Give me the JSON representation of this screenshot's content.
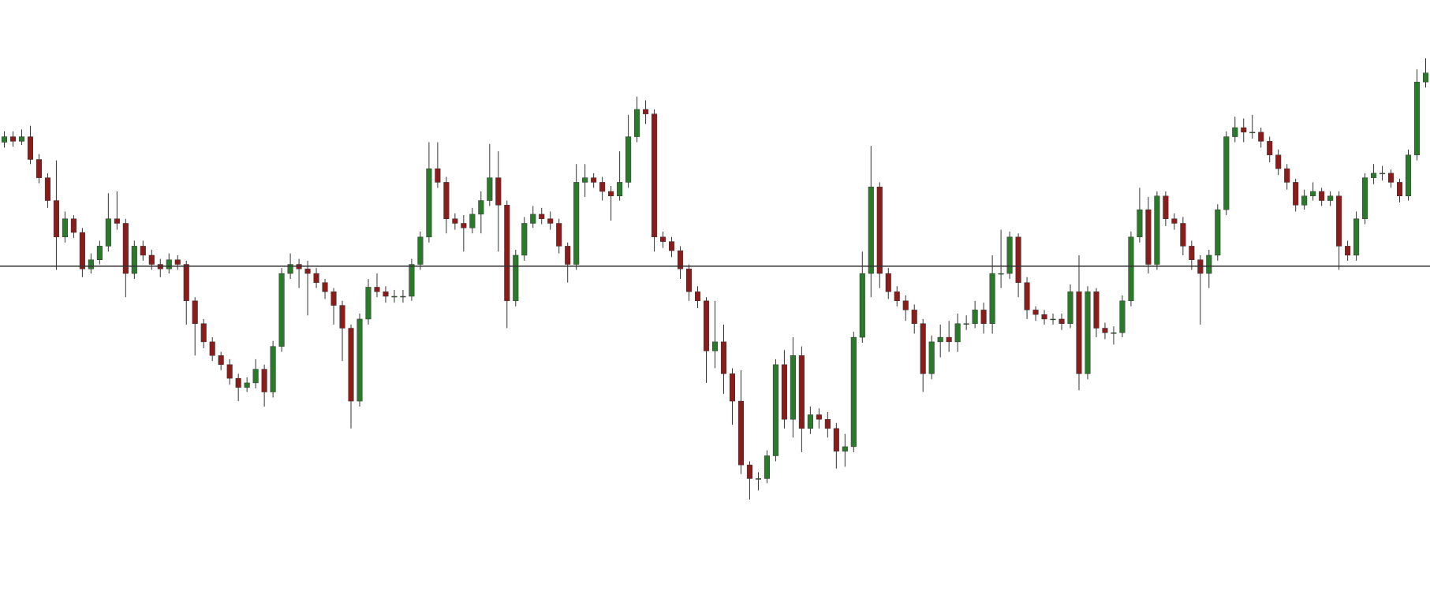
{
  "chart_data": {
    "type": "candlestick",
    "open": [
      500,
      506,
      501,
      506,
      481,
      461,
      436,
      396,
      416,
      401,
      361,
      371,
      386,
      416,
      411,
      356,
      386,
      376,
      366,
      361,
      371,
      366,
      326,
      301,
      281,
      266,
      256,
      241,
      231,
      236,
      251,
      226,
      276,
      356,
      366,
      361,
      356,
      346,
      336,
      321,
      296,
      216,
      306,
      341,
      336,
      331,
      331,
      331,
      366,
      396,
      471,
      456,
      416,
      411,
      406,
      421,
      436,
      461,
      431,
      326,
      376,
      411,
      421,
      416,
      411,
      386,
      366,
      456,
      461,
      456,
      446,
      441,
      456,
      506,
      536,
      531,
      396,
      391,
      381,
      361,
      336,
      326,
      271,
      281,
      246,
      216,
      146,
      131,
      131,
      156,
      256,
      196,
      266,
      186,
      201,
      196,
      186,
      161,
      166,
      286,
      356,
      451,
      356,
      336,
      326,
      316,
      301,
      246,
      281,
      286,
      281,
      301,
      301,
      316,
      301,
      356,
      356,
      396,
      346,
      316,
      311,
      306,
      306,
      301,
      336,
      246,
      336,
      296,
      291,
      291,
      326,
      396,
      426,
      366,
      441,
      416,
      411,
      386,
      371,
      356,
      376,
      426,
      506,
      516,
      511,
      511,
      501,
      486,
      471,
      456,
      431,
      441,
      446,
      436,
      441,
      386,
      376,
      416,
      461,
      466,
      466,
      456,
      441,
      486,
      566
    ],
    "high": [
      512,
      512,
      514,
      518,
      487,
      466,
      480,
      424,
      420,
      406,
      378,
      392,
      444,
      446,
      416,
      392,
      392,
      382,
      372,
      378,
      376,
      370,
      330,
      306,
      286,
      270,
      262,
      246,
      242,
      262,
      256,
      282,
      362,
      378,
      372,
      370,
      362,
      350,
      340,
      326,
      300,
      312,
      350,
      356,
      342,
      338,
      338,
      372,
      402,
      500,
      500,
      462,
      422,
      420,
      428,
      446,
      498,
      490,
      436,
      382,
      418,
      430,
      428,
      424,
      416,
      390,
      476,
      476,
      466,
      462,
      452,
      490,
      530,
      550,
      546,
      536,
      402,
      396,
      386,
      366,
      342,
      330,
      326,
      300,
      252,
      250,
      150,
      138,
      162,
      262,
      272,
      286,
      276,
      210,
      208,
      204,
      192,
      180,
      292,
      380,
      496,
      456,
      362,
      342,
      332,
      322,
      306,
      288,
      300,
      304,
      312,
      310,
      326,
      324,
      376,
      404,
      402,
      400,
      352,
      320,
      316,
      312,
      312,
      344,
      376,
      342,
      340,
      302,
      298,
      332,
      402,
      450,
      440,
      446,
      446,
      422,
      418,
      392,
      376,
      382,
      432,
      512,
      528,
      526,
      530,
      516,
      506,
      492,
      476,
      460,
      448,
      456,
      450,
      446,
      446,
      392,
      424,
      466,
      476,
      474,
      470,
      460,
      492,
      580,
      592
    ],
    "low": [
      494,
      495,
      497,
      476,
      455,
      428,
      360,
      390,
      395,
      352,
      356,
      366,
      380,
      404,
      330,
      350,
      370,
      360,
      352,
      356,
      360,
      300,
      266,
      274,
      260,
      250,
      234,
      216,
      226,
      230,
      210,
      220,
      270,
      350,
      340,
      310,
      340,
      328,
      300,
      260,
      186,
      210,
      300,
      330,
      324,
      324,
      324,
      326,
      360,
      390,
      450,
      400,
      404,
      380,
      400,
      400,
      430,
      380,
      296,
      320,
      370,
      406,
      410,
      404,
      378,
      346,
      360,
      440,
      450,
      436,
      414,
      436,
      450,
      500,
      520,
      380,
      384,
      374,
      350,
      326,
      318,
      236,
      252,
      224,
      190,
      136,
      108,
      118,
      126,
      150,
      186,
      176,
      160,
      180,
      186,
      176,
      142,
      144,
      160,
      280,
      330,
      340,
      328,
      320,
      304,
      290,
      226,
      240,
      264,
      270,
      270,
      294,
      296,
      290,
      290,
      340,
      350,
      330,
      306,
      304,
      300,
      300,
      294,
      296,
      228,
      240,
      286,
      284,
      278,
      286,
      320,
      390,
      356,
      360,
      408,
      404,
      376,
      360,
      300,
      340,
      370,
      420,
      500,
      500,
      504,
      494,
      478,
      464,
      448,
      424,
      426,
      436,
      430,
      430,
      360,
      370,
      370,
      410,
      454,
      458,
      450,
      434,
      436,
      480,
      560
    ],
    "close": [
      506,
      501,
      506,
      481,
      461,
      436,
      396,
      416,
      401,
      361,
      371,
      386,
      416,
      411,
      356,
      386,
      376,
      366,
      361,
      371,
      366,
      326,
      301,
      281,
      266,
      256,
      241,
      231,
      236,
      251,
      226,
      276,
      356,
      366,
      361,
      356,
      346,
      336,
      321,
      296,
      216,
      306,
      341,
      336,
      331,
      331,
      331,
      366,
      396,
      471,
      456,
      416,
      411,
      406,
      421,
      436,
      461,
      431,
      326,
      376,
      411,
      421,
      416,
      411,
      386,
      366,
      456,
      461,
      456,
      446,
      441,
      456,
      506,
      536,
      531,
      396,
      391,
      381,
      361,
      336,
      326,
      271,
      281,
      246,
      216,
      146,
      131,
      131,
      156,
      256,
      196,
      266,
      186,
      201,
      196,
      186,
      161,
      166,
      286,
      356,
      451,
      356,
      336,
      326,
      316,
      301,
      246,
      281,
      286,
      281,
      301,
      301,
      316,
      301,
      356,
      356,
      396,
      346,
      316,
      311,
      306,
      306,
      301,
      336,
      246,
      336,
      296,
      291,
      291,
      326,
      396,
      426,
      366,
      441,
      416,
      411,
      386,
      371,
      356,
      376,
      426,
      506,
      516,
      511,
      511,
      501,
      486,
      471,
      456,
      431,
      441,
      446,
      436,
      441,
      386,
      376,
      416,
      461,
      466,
      466,
      456,
      441,
      486,
      566,
      576
    ],
    "ylim": [
      0,
      656
    ],
    "reference_line": 364,
    "up_color": "#2b7a2b",
    "down_color": "#8b1c1c",
    "wick_color": "#333333",
    "line_color": "#333333"
  }
}
